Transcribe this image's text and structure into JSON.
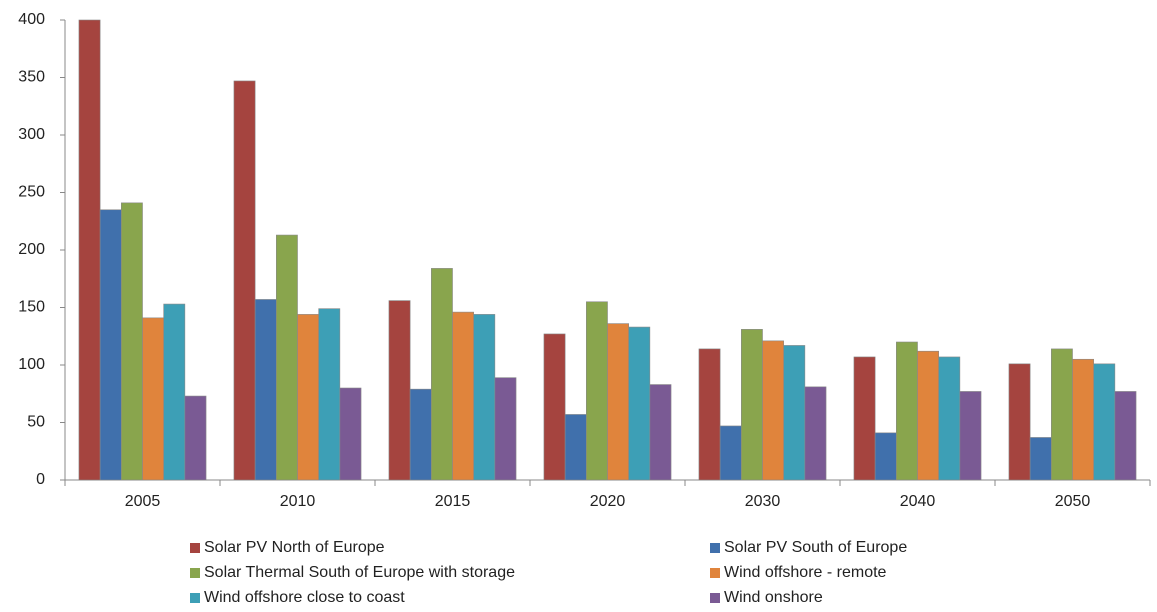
{
  "chart_data": {
    "type": "bar",
    "categories": [
      "2005",
      "2010",
      "2015",
      "2020",
      "2030",
      "2040",
      "2050"
    ],
    "series": [
      {
        "name": "Solar PV North of Europe",
        "color": "#a5443f",
        "values": [
          400,
          347,
          156,
          127,
          114,
          107,
          101
        ]
      },
      {
        "name": "Solar PV South of Europe",
        "color": "#4070ac",
        "values": [
          235,
          157,
          79,
          57,
          47,
          41,
          37
        ]
      },
      {
        "name": "Solar Thermal South of Europe with storage",
        "color": "#89a54d",
        "values": [
          241,
          213,
          184,
          155,
          131,
          120,
          114
        ]
      },
      {
        "name": "Wind offshore - remote",
        "color": "#e0843c",
        "values": [
          141,
          144,
          146,
          136,
          121,
          112,
          105
        ]
      },
      {
        "name": "Wind offshore close to coast",
        "color": "#3d9fb6",
        "values": [
          153,
          149,
          144,
          133,
          117,
          107,
          101
        ]
      },
      {
        "name": "Wind onshore",
        "color": "#7a5a94",
        "values": [
          73,
          80,
          89,
          83,
          81,
          77,
          77
        ]
      }
    ],
    "ylim": [
      0,
      400
    ],
    "yticks": [
      0,
      50,
      100,
      150,
      200,
      250,
      300,
      350,
      400
    ],
    "grid": false
  }
}
